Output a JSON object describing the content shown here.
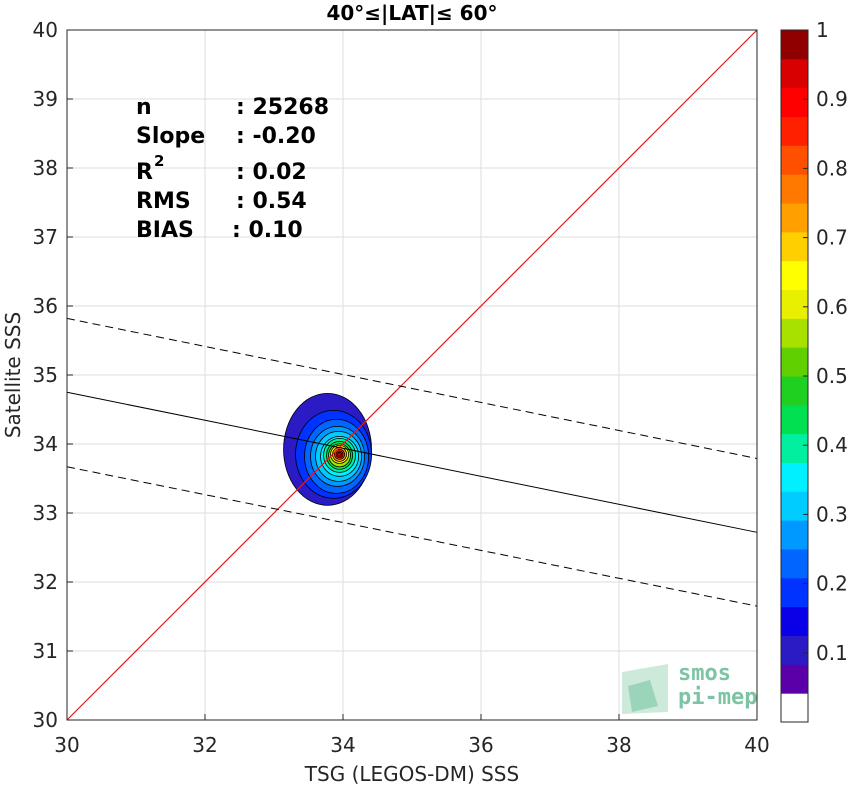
{
  "chart_data": {
    "type": "scatter",
    "title": "40°≤|LAT|≤ 60°",
    "xlabel": "TSG (LEGOS-DM) SSS",
    "ylabel": "Satellite SSS",
    "xlim": [
      30,
      40
    ],
    "ylim": [
      30,
      40
    ],
    "xticks": [
      "30",
      "32",
      "34",
      "36",
      "38",
      "40"
    ],
    "yticks": [
      "30",
      "31",
      "32",
      "33",
      "34",
      "35",
      "36",
      "37",
      "38",
      "39",
      "40"
    ],
    "grid": true,
    "stats": {
      "n_label": "n",
      "n_value": ": 25268",
      "slope_label": "Slope",
      "slope_value": ": -0.20",
      "r2_label": "R",
      "r2_sup": "2",
      "r2_value": ": 0.02",
      "rms_label": "RMS",
      "rms_value": ": 0.54",
      "bias_label": "BIAS",
      "bias_value": ": 0.10"
    },
    "lines": {
      "identity": {
        "x": [
          30,
          40
        ],
        "y": [
          30,
          40
        ],
        "color": "#e41a1c"
      },
      "fit": {
        "x": [
          30,
          40
        ],
        "y": [
          34.75,
          32.72
        ],
        "color": "#000000"
      },
      "upper_bound": {
        "x": [
          30,
          40
        ],
        "y": [
          35.82,
          33.79
        ]
      },
      "lower_bound": {
        "x": [
          30,
          40
        ],
        "y": [
          33.67,
          31.65
        ]
      }
    },
    "density_center": {
      "x": 33.95,
      "y": 33.85
    },
    "colorbar": {
      "ticks": [
        "0.1",
        "0.2",
        "0.3",
        "0.4",
        "0.5",
        "0.6",
        "0.7",
        "0.8",
        "0.9",
        "1"
      ],
      "colors": [
        "#ffffff",
        "#5b00a8",
        "#2a1bc4",
        "#0a00e8",
        "#0033ff",
        "#0066ff",
        "#0099ff",
        "#00ccff",
        "#00f0ff",
        "#00f0a0",
        "#00e050",
        "#20d020",
        "#60d000",
        "#a8e000",
        "#e8f000",
        "#ffff00",
        "#ffd000",
        "#ffa000",
        "#ff7800",
        "#ff5000",
        "#ff2000",
        "#ff0000",
        "#d80000",
        "#900000"
      ]
    },
    "logo": {
      "line1": "smos",
      "line2": "pi-mep"
    }
  }
}
